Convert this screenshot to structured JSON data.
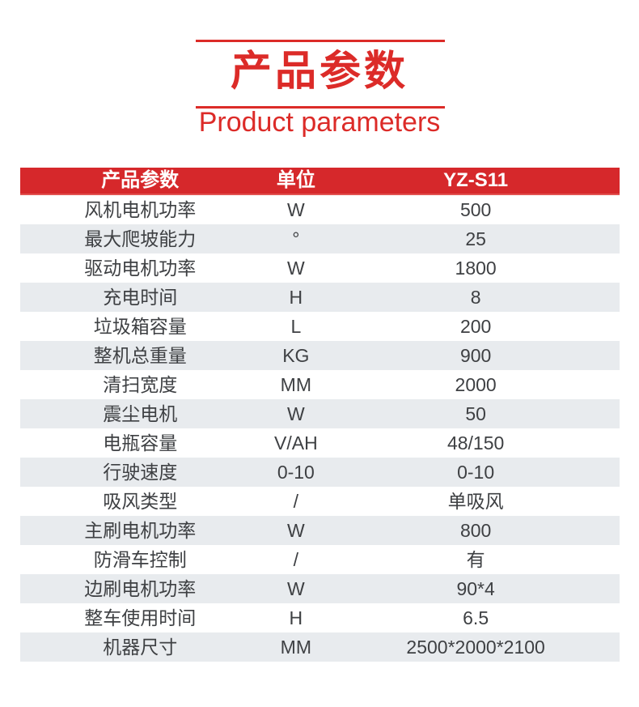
{
  "header": {
    "title_cn": "产品参数",
    "title_en": "Product parameters"
  },
  "colors": {
    "title_red": "#dc2b28",
    "header_red": "#d6282b",
    "header_accent": "#e25250",
    "row_alt_gray": "#e8ebee",
    "text_dark": "#3e4043"
  },
  "table": {
    "columns": [
      "产品参数",
      "单位",
      "YZ-S11"
    ],
    "rows": [
      {
        "param": "风机电机功率",
        "unit": "W",
        "value": "500"
      },
      {
        "param": "最大爬坡能力",
        "unit": "°",
        "value": "25"
      },
      {
        "param": "驱动电机功率",
        "unit": "W",
        "value": "1800"
      },
      {
        "param": "充电时间",
        "unit": "H",
        "value": "8"
      },
      {
        "param": "垃圾箱容量",
        "unit": "L",
        "value": "200"
      },
      {
        "param": "整机总重量",
        "unit": "KG",
        "value": "900"
      },
      {
        "param": "清扫宽度",
        "unit": "MM",
        "value": "2000"
      },
      {
        "param": "震尘电机",
        "unit": "W",
        "value": "50"
      },
      {
        "param": "电瓶容量",
        "unit": "V/AH",
        "value": "48/150"
      },
      {
        "param": "行驶速度",
        "unit": "0-10",
        "value": "0-10"
      },
      {
        "param": "吸风类型",
        "unit": "/",
        "value": "单吸风"
      },
      {
        "param": "主刷电机功率",
        "unit": "W",
        "value": "800"
      },
      {
        "param": "防滑车控制",
        "unit": "/",
        "value": "有"
      },
      {
        "param": "边刷电机功率",
        "unit": "W",
        "value": "90*4"
      },
      {
        "param": "整车使用时间",
        "unit": "H",
        "value": "6.5"
      },
      {
        "param": "机器尺寸",
        "unit": "MM",
        "value": "2500*2000*2100"
      }
    ]
  }
}
